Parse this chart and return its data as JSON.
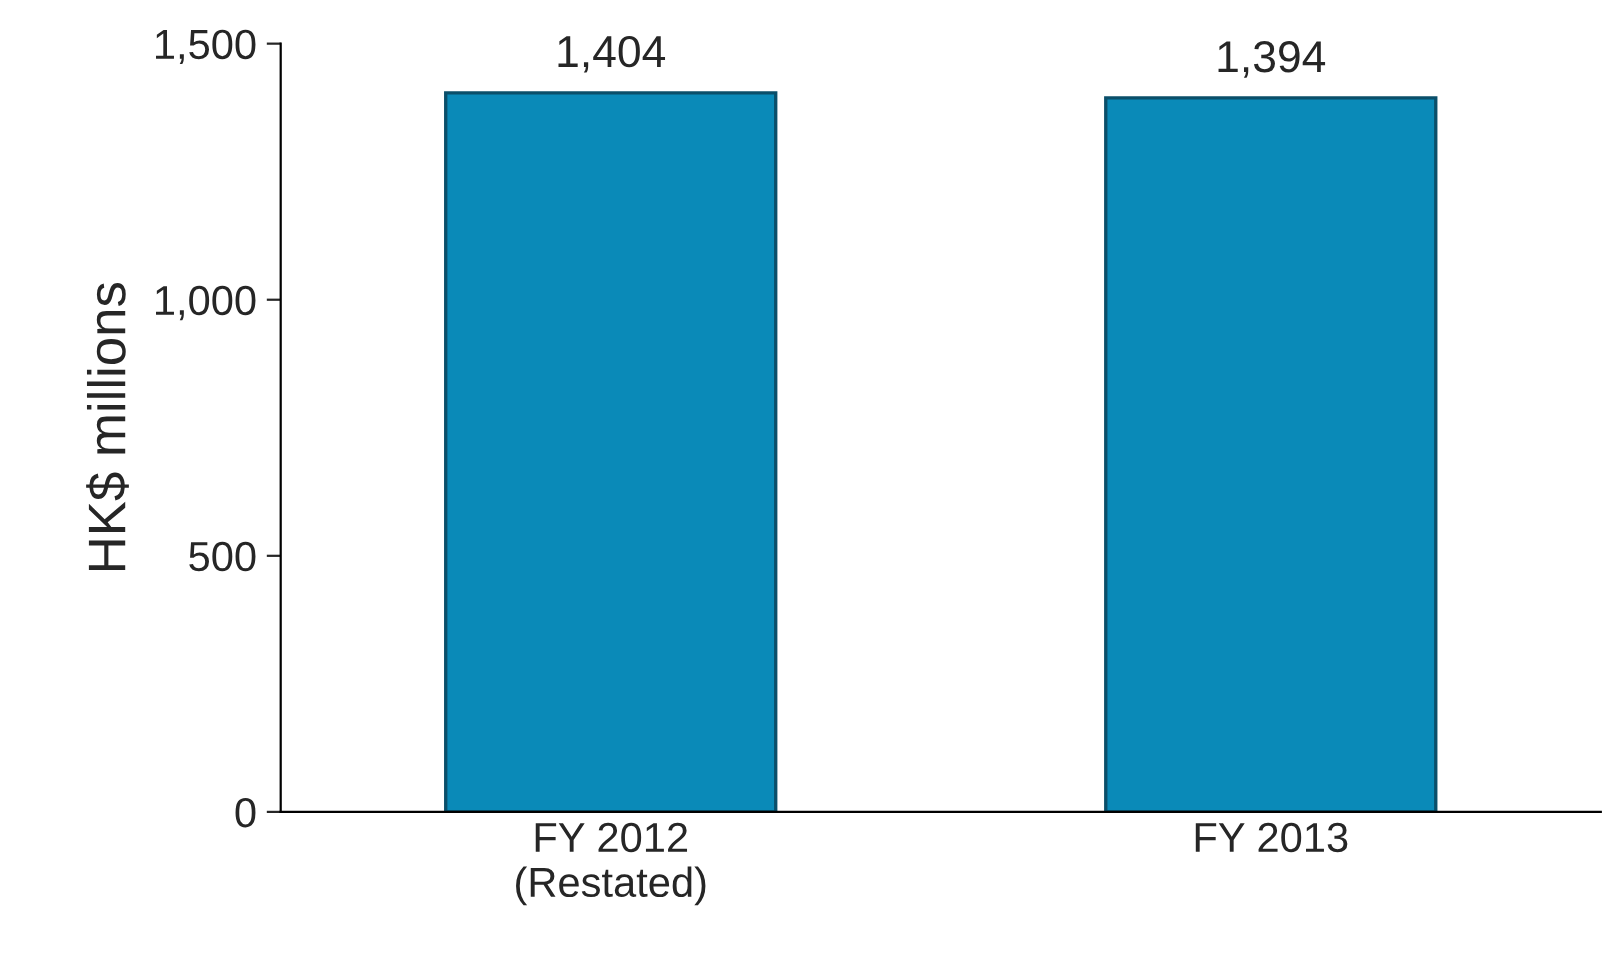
{
  "chart_data": {
    "type": "bar",
    "categories": [
      "FY 2012\n(Restated)",
      "FY 2013"
    ],
    "values": [
      1404,
      1394
    ],
    "value_labels": [
      "1,404",
      "1,394"
    ],
    "color": "#0a8ab8",
    "ylabel": "HK$ millions",
    "ylim": [
      0,
      1500
    ],
    "yticks": [
      0,
      500,
      {
        "value": 1000,
        "label": "1,000"
      },
      {
        "value": 1500,
        "label": "1,500"
      }
    ],
    "grid": false,
    "legend": false
  }
}
